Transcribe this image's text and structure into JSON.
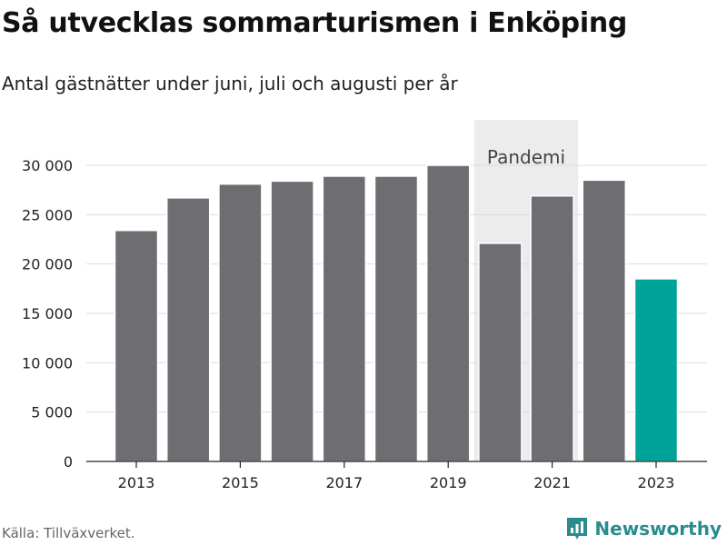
{
  "title": "Så utvecklas sommarturismen i Enköping",
  "subtitle": "Antal gästnätter under juni, juli och augusti per år",
  "source": "Källa: Tillväxverket.",
  "brand": {
    "name": "Newsworthy",
    "icon": "newsworthy-logo-icon",
    "color": "#2a8c8c"
  },
  "colors": {
    "bar": "#6e6d72",
    "highlight": "#00a398",
    "band": "#ececec",
    "grid": "#dddddd"
  },
  "chart_data": {
    "type": "bar",
    "categories": [
      "2013",
      "2014",
      "2015",
      "2016",
      "2017",
      "2018",
      "2019",
      "2020",
      "2021",
      "2022",
      "2023"
    ],
    "values": [
      23400,
      26700,
      28100,
      28400,
      28900,
      28900,
      30000,
      22100,
      26900,
      28500,
      18500
    ],
    "highlight_category": "2023",
    "x_tick_labels": [
      "2013",
      "2015",
      "2017",
      "2019",
      "2021",
      "2023"
    ],
    "y_ticks": [
      0,
      5000,
      10000,
      15000,
      20000,
      25000,
      30000
    ],
    "y_tick_labels": [
      "0",
      "5 000",
      "10 000",
      "15 000",
      "20 000",
      "25 000",
      "30 000"
    ],
    "ylim": [
      0,
      30000
    ],
    "grid": true,
    "annotation": {
      "label": "Pandemi",
      "from": "2020",
      "to": "2021"
    }
  }
}
